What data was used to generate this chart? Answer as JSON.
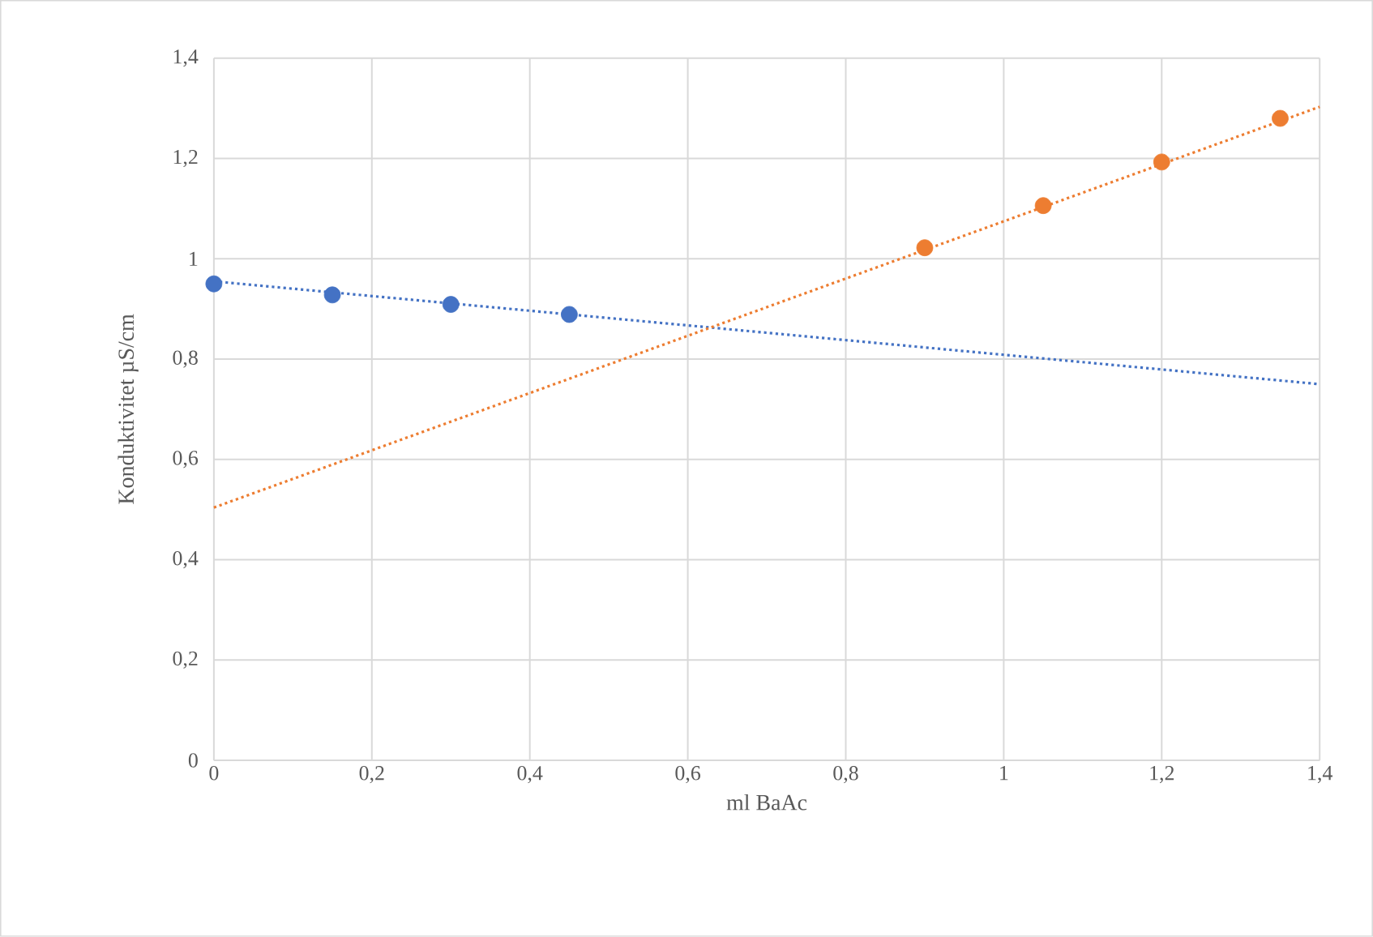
{
  "chart_data": {
    "type": "scatter",
    "xlabel": "ml BaAc",
    "ylabel": "Konduktivitet µS/cm",
    "grid": true,
    "marker": "circle",
    "xlim": [
      0,
      1.4
    ],
    "ylim": [
      0,
      1.4
    ],
    "xticks": [
      0,
      {
        "value": 0.2,
        "label": "0,2"
      },
      {
        "value": 0.4,
        "label": "0,4"
      },
      {
        "value": 0.6,
        "label": "0,6"
      },
      {
        "value": 0.8,
        "label": "0,8"
      },
      1,
      {
        "value": 1.2,
        "label": "1,2"
      },
      {
        "value": 1.4,
        "label": "1,4"
      }
    ],
    "yticks": [
      0,
      {
        "value": 0.2,
        "label": "0,2"
      },
      {
        "value": 0.4,
        "label": "0,4"
      },
      {
        "value": 0.6,
        "label": "0,6"
      },
      {
        "value": 0.8,
        "label": "0,8"
      },
      1,
      {
        "value": 1.2,
        "label": "1,2"
      },
      {
        "value": 1.4,
        "label": "1,4"
      }
    ],
    "series": [
      {
        "type": "line",
        "line_style": "dotted",
        "marker": "none",
        "color": "#4472c4",
        "x": [
          0,
          1.4
        ],
        "values": [
          0.955,
          0.75
        ]
      },
      {
        "type": "line",
        "line_style": "dotted",
        "marker": "none",
        "color": "#ed7d31",
        "x": [
          0,
          1.4
        ],
        "values": [
          0.504,
          1.303
        ]
      },
      {
        "color": "#4472c4",
        "x": [
          0,
          0.15,
          0.3,
          0.45
        ],
        "values": [
          0.95,
          0.928,
          0.909,
          0.889
        ]
      },
      {
        "color": "#ed7d31",
        "x": [
          0.9,
          1.05,
          1.2,
          1.35
        ],
        "values": [
          1.022,
          1.106,
          1.193,
          1.28
        ]
      }
    ]
  }
}
